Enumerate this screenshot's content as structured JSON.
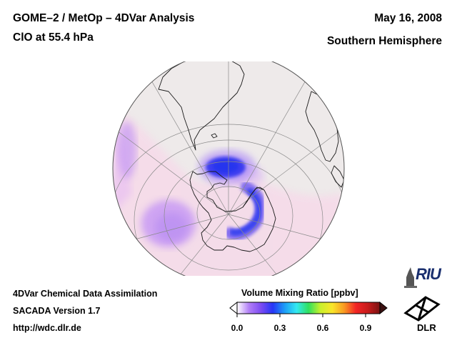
{
  "header": {
    "title_line1": "GOME–2 / MetOp – 4DVar Analysis",
    "title_line2": "ClO at 55.4 hPa",
    "date": "May 16, 2008",
    "hemisphere": "Southern Hemisphere"
  },
  "footer": {
    "line1": "4DVar Chemical Data Assimilation",
    "line2": "SACADA Version 1.7",
    "line3": "http://wdc.dlr.de"
  },
  "colorbar": {
    "title": "Volume Mixing Ratio [ppbv]",
    "ticks": [
      "0.0",
      "0.3",
      "0.6",
      "0.9"
    ],
    "min": 0.0,
    "max": 1.0,
    "colors": [
      "#ffffff",
      "#b27ff7",
      "#7d4cf2",
      "#2636f6",
      "#1e9df7",
      "#33e9f1",
      "#2fe05e",
      "#c8f02c",
      "#f9e62a",
      "#f99a23",
      "#f22424",
      "#c61b1b",
      "#7a1212"
    ]
  },
  "logos": {
    "riu": "RIU",
    "dlr": "DLR"
  },
  "icons": {
    "riu_logo": "riu-logo-icon",
    "dlr_logo": "dlr-logo-icon"
  },
  "colors": {
    "ocean": "#eeeaea",
    "background_field": "#f5dbe9",
    "grid": "#8a8a8a",
    "coast": "#1a1a1a"
  },
  "chart_data": {
    "type": "heatmap",
    "title": "ClO at 55.4 hPa",
    "projection": "orthographic, south pole view",
    "quantity": "Volume Mixing Ratio [ppbv]",
    "range": [
      0.0,
      1.0
    ],
    "features": [
      {
        "name": "ClO maximum over Antarctic Peninsula",
        "value_ppbv": 0.3
      },
      {
        "name": "ClO arc toward Weddell/Queen Maud sector",
        "value_ppbv": 0.25
      },
      {
        "name": "enhanced region south Pacific limb",
        "value_ppbv": 0.08
      },
      {
        "name": "enhanced region south Atlantic limb",
        "value_ppbv": 0.07
      }
    ]
  }
}
